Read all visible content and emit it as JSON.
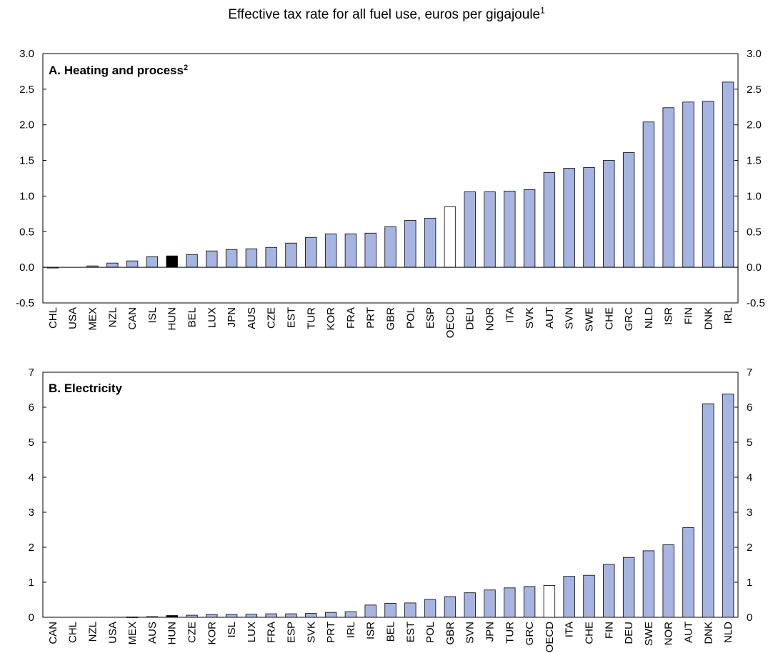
{
  "figure": {
    "title": "Effective tax rate for all fuel use, euros per gigajoule",
    "title_footnote": "1"
  },
  "colors": {
    "bar": "#a6b4e1",
    "hungary": "#000000",
    "oecd": "#ffffff",
    "outline": "#000000"
  },
  "chart_data": [
    {
      "type": "bar",
      "title": "A. Heating and process",
      "title_footnote": "2",
      "xlabel": "",
      "ylabel": "",
      "ylim": [
        -0.5,
        3.0
      ],
      "yticks": [
        "-0.5",
        "0.0",
        "0.5",
        "1.0",
        "1.5",
        "2.0",
        "2.5",
        "3.0"
      ],
      "grid": false,
      "highlight": {
        "HUN": "hungary",
        "OECD": "oecd"
      },
      "categories": [
        "CHL",
        "USA",
        "MEX",
        "NZL",
        "CAN",
        "ISL",
        "HUN",
        "BEL",
        "LUX",
        "JPN",
        "AUS",
        "CZE",
        "EST",
        "TUR",
        "KOR",
        "FRA",
        "PRT",
        "GBR",
        "POL",
        "ESP",
        "OECD",
        "DEU",
        "NOR",
        "ITA",
        "SVK",
        "AUT",
        "SVN",
        "SWE",
        "CHE",
        "GRC",
        "NLD",
        "ISR",
        "FIN",
        "DNK",
        "IRL"
      ],
      "values": [
        -0.01,
        0.0,
        0.02,
        0.06,
        0.09,
        0.15,
        0.16,
        0.18,
        0.23,
        0.25,
        0.26,
        0.28,
        0.34,
        0.42,
        0.47,
        0.47,
        0.48,
        0.57,
        0.66,
        0.69,
        0.85,
        1.06,
        1.06,
        1.07,
        1.09,
        1.33,
        1.39,
        1.4,
        1.5,
        1.61,
        2.04,
        2.24,
        2.32,
        2.33,
        2.6
      ]
    },
    {
      "type": "bar",
      "title": "B. Electricity",
      "xlabel": "",
      "ylabel": "",
      "ylim": [
        0,
        7
      ],
      "yticks": [
        "0",
        "1",
        "2",
        "3",
        "4",
        "5",
        "6",
        "7"
      ],
      "grid": false,
      "highlight": {
        "HUN": "hungary",
        "OECD": "oecd"
      },
      "categories": [
        "CAN",
        "CHL",
        "NZL",
        "USA",
        "MEX",
        "AUS",
        "HUN",
        "CZE",
        "KOR",
        "ISL",
        "LUX",
        "FRA",
        "ESP",
        "SVK",
        "PRT",
        "IRL",
        "ISR",
        "BEL",
        "EST",
        "POL",
        "GBR",
        "SVN",
        "JPN",
        "TUR",
        "GRC",
        "OECD",
        "ITA",
        "CHE",
        "FIN",
        "DEU",
        "SWE",
        "NOR",
        "AUT",
        "DNK",
        "NLD"
      ],
      "values": [
        0.0,
        0.0,
        0.0,
        0.0,
        0.01,
        0.02,
        0.05,
        0.06,
        0.08,
        0.08,
        0.09,
        0.1,
        0.1,
        0.11,
        0.14,
        0.16,
        0.35,
        0.4,
        0.41,
        0.51,
        0.59,
        0.7,
        0.78,
        0.84,
        0.88,
        0.91,
        1.17,
        1.2,
        1.51,
        1.71,
        1.9,
        2.07,
        2.56,
        6.1,
        6.38
      ]
    }
  ]
}
